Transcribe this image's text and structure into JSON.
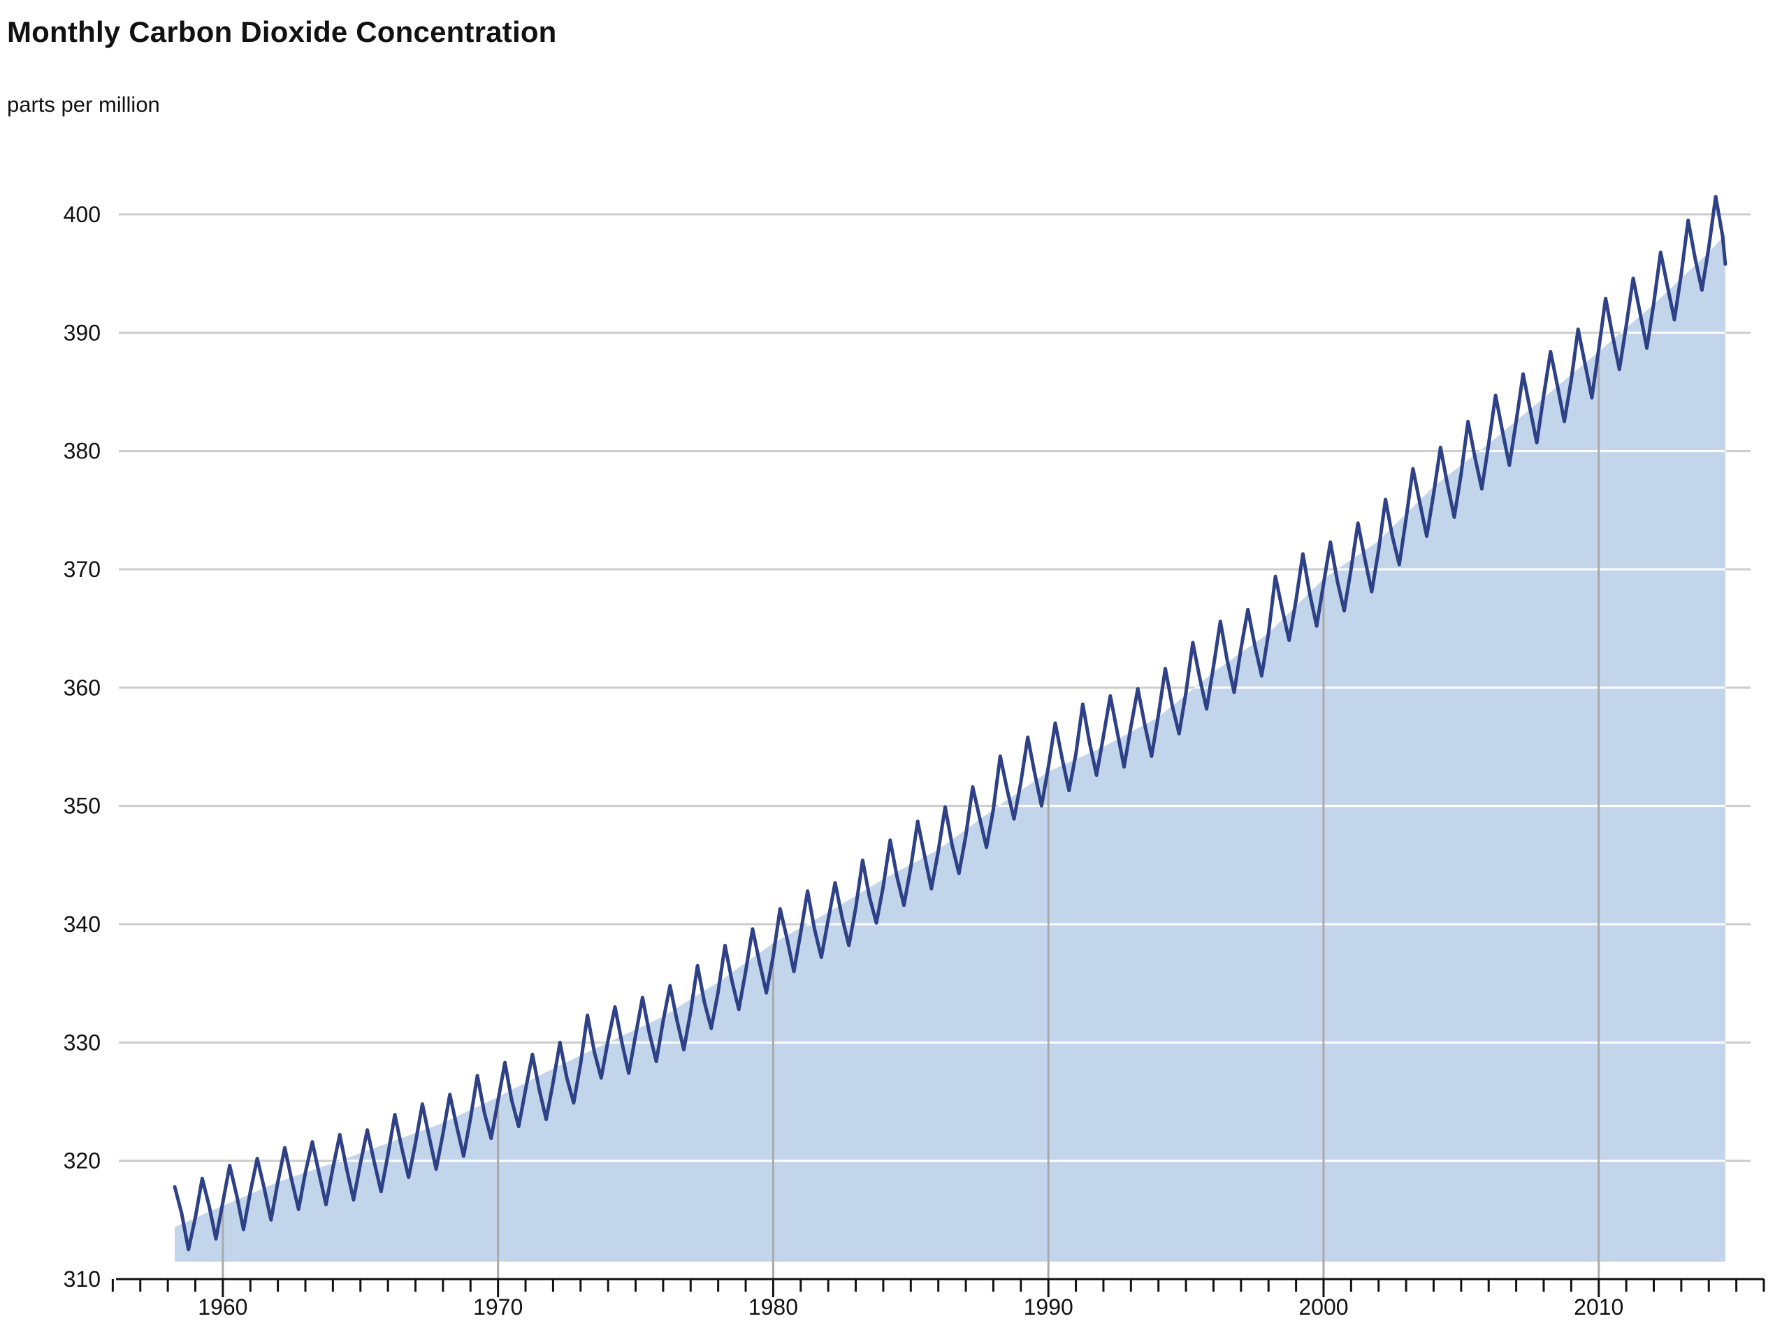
{
  "chart_data": {
    "type": "area",
    "title": "Monthly Carbon Dioxide Concentration",
    "subtitle": "parts per million",
    "xlabel": "",
    "ylabel": "",
    "xlim": [
      1955.0,
      2016.0
    ],
    "ylim": [
      310,
      401
    ],
    "xticks": [
      1960,
      1970,
      1980,
      1990,
      2000,
      2010
    ],
    "xtick_labels": [
      "1960",
      "1970",
      "1980",
      "1990",
      "2000",
      "2010"
    ],
    "yticks": [
      310,
      320,
      330,
      340,
      350,
      360,
      370,
      380,
      390,
      400
    ],
    "ytick_labels": [
      "310",
      "320",
      "330",
      "340",
      "350",
      "360",
      "370",
      "380",
      "390",
      "400"
    ],
    "grid": "horizontal",
    "legend": "none",
    "colors": {
      "line": "#2e4187",
      "area": "#c3d5ea",
      "grid": "#cccccc",
      "decade_lines": "#aaaaaa",
      "axis": "#111111"
    },
    "series": [
      {
        "role": "line",
        "x": [
          1958.25,
          1958.5,
          1958.75,
          1959.0,
          1959.25,
          1959.5,
          1959.75,
          1960.0,
          1960.25,
          1960.5,
          1960.75,
          1961.0,
          1961.25,
          1961.5,
          1961.75,
          1962.0,
          1962.25,
          1962.5,
          1962.75,
          1963.0,
          1963.25,
          1963.5,
          1963.75,
          1964.0,
          1964.25,
          1964.5,
          1964.75,
          1965.0,
          1965.25,
          1965.5,
          1965.75,
          1966.0,
          1966.25,
          1966.5,
          1966.75,
          1967.0,
          1967.25,
          1967.5,
          1967.75,
          1968.0,
          1968.25,
          1968.5,
          1968.75,
          1969.0,
          1969.25,
          1969.5,
          1969.75,
          1970.0,
          1970.25,
          1970.5,
          1970.75,
          1971.0,
          1971.25,
          1971.5,
          1971.75,
          1972.0,
          1972.25,
          1972.5,
          1972.75,
          1973.0,
          1973.25,
          1973.5,
          1973.75,
          1974.0,
          1974.25,
          1974.5,
          1974.75,
          1975.0,
          1975.25,
          1975.5,
          1975.75,
          1976.0,
          1976.25,
          1976.5,
          1976.75,
          1977.0,
          1977.25,
          1977.5,
          1977.75,
          1978.0,
          1978.25,
          1978.5,
          1978.75,
          1979.0,
          1979.25,
          1979.5,
          1979.75,
          1980.0,
          1980.25,
          1980.5,
          1980.75,
          1981.0,
          1981.25,
          1981.5,
          1981.75,
          1982.0,
          1982.25,
          1982.5,
          1982.75,
          1983.0,
          1983.25,
          1983.5,
          1983.75,
          1984.0,
          1984.25,
          1984.5,
          1984.75,
          1985.0,
          1985.25,
          1985.5,
          1985.75,
          1986.0,
          1986.25,
          1986.5,
          1986.75,
          1987.0,
          1987.25,
          1987.5,
          1987.75,
          1988.0,
          1988.25,
          1988.5,
          1988.75,
          1989.0,
          1989.25,
          1989.5,
          1989.75,
          1990.0,
          1990.25,
          1990.5,
          1990.75,
          1991.0,
          1991.25,
          1991.5,
          1991.75,
          1992.0,
          1992.25,
          1992.5,
          1992.75,
          1993.0,
          1993.25,
          1993.5,
          1993.75,
          1994.0,
          1994.25,
          1994.5,
          1994.75,
          1995.0,
          1995.25,
          1995.5,
          1995.75,
          1996.0,
          1996.25,
          1996.5,
          1996.75,
          1997.0,
          1997.25,
          1997.5,
          1997.75,
          1998.0,
          1998.25,
          1998.5,
          1998.75,
          1999.0,
          1999.25,
          1999.5,
          1999.75,
          2000.0,
          2000.25,
          2000.5,
          2000.75,
          2001.0,
          2001.25,
          2001.5,
          2001.75,
          2002.0,
          2002.25,
          2002.5,
          2002.75,
          2003.0,
          2003.25,
          2003.5,
          2003.75,
          2004.0,
          2004.25,
          2004.5,
          2004.75,
          2005.0,
          2005.25,
          2005.5,
          2005.75,
          2006.0,
          2006.25,
          2006.5,
          2006.75,
          2007.0,
          2007.25,
          2007.5,
          2007.75,
          2008.0,
          2008.25,
          2008.5,
          2008.75,
          2009.0,
          2009.25,
          2009.5,
          2009.75,
          2010.0,
          2010.25,
          2010.5,
          2010.75,
          2011.0,
          2011.25,
          2011.5,
          2011.75,
          2012.0,
          2012.25,
          2012.5,
          2012.75,
          2013.0,
          2013.25,
          2013.5,
          2013.75,
          2014.0,
          2014.25,
          2014.5,
          2014.6
        ],
        "y": [
          317.8,
          315.6,
          312.5,
          315.2,
          318.5,
          316.2,
          313.4,
          316.5,
          319.6,
          317.1,
          314.2,
          317.4,
          320.2,
          317.7,
          315.0,
          318.2,
          321.1,
          318.4,
          315.9,
          319.0,
          321.6,
          318.9,
          316.3,
          319.4,
          322.2,
          319.3,
          316.7,
          319.8,
          322.6,
          319.9,
          317.4,
          320.5,
          323.9,
          321.1,
          318.6,
          321.5,
          324.8,
          322.0,
          319.3,
          322.3,
          325.6,
          322.9,
          320.4,
          323.6,
          327.2,
          324.1,
          321.9,
          325.1,
          328.3,
          325.1,
          322.9,
          326.0,
          329.0,
          326.0,
          323.5,
          326.6,
          330.0,
          327.0,
          324.9,
          328.2,
          332.3,
          329.2,
          327.0,
          330.2,
          333.0,
          330.0,
          327.4,
          330.6,
          333.8,
          330.8,
          328.4,
          331.8,
          334.8,
          331.9,
          329.4,
          332.6,
          336.5,
          333.4,
          331.2,
          334.3,
          338.2,
          335.2,
          332.8,
          336.0,
          339.6,
          336.8,
          334.2,
          337.3,
          341.3,
          338.8,
          336.0,
          339.3,
          342.8,
          339.6,
          337.2,
          340.4,
          343.5,
          340.6,
          338.2,
          341.4,
          345.4,
          342.3,
          340.1,
          343.2,
          347.1,
          344.0,
          341.6,
          344.8,
          348.7,
          345.8,
          343.0,
          346.2,
          349.9,
          346.7,
          344.3,
          347.5,
          351.6,
          349.0,
          346.5,
          349.7,
          354.2,
          351.4,
          348.9,
          352.0,
          355.8,
          352.8,
          350.0,
          353.3,
          357.0,
          354.0,
          351.3,
          354.4,
          358.6,
          355.3,
          352.6,
          355.9,
          359.3,
          356.3,
          353.3,
          356.7,
          359.9,
          356.9,
          354.2,
          357.7,
          361.6,
          358.5,
          356.1,
          359.6,
          363.8,
          360.8,
          358.2,
          361.8,
          365.6,
          362.3,
          359.6,
          363.3,
          366.6,
          363.6,
          361.0,
          364.6,
          369.4,
          366.6,
          364.0,
          367.4,
          371.3,
          367.9,
          365.2,
          368.8,
          372.3,
          369.0,
          366.5,
          370.0,
          373.9,
          370.9,
          368.1,
          371.6,
          375.9,
          372.8,
          370.4,
          374.3,
          378.5,
          375.6,
          372.8,
          376.4,
          380.3,
          377.2,
          374.4,
          378.1,
          382.5,
          379.5,
          376.8,
          380.6,
          384.7,
          381.7,
          378.8,
          382.5,
          386.5,
          383.6,
          380.7,
          384.7,
          388.4,
          385.5,
          382.5,
          386.0,
          390.3,
          387.4,
          384.5,
          388.6,
          392.9,
          389.8,
          386.9,
          390.6,
          394.6,
          391.7,
          388.7,
          392.5,
          396.8,
          393.9,
          391.1,
          395.0,
          399.5,
          396.3,
          393.6,
          397.2,
          401.5,
          398.2,
          395.8
        ]
      },
      {
        "role": "area",
        "x": [
          1958.25,
          1960,
          1962,
          1964,
          1966,
          1968,
          1970,
          1972,
          1974,
          1976,
          1978,
          1980,
          1982,
          1984,
          1986,
          1988,
          1990,
          1992,
          1994,
          1996,
          1998,
          2000,
          2002,
          2004,
          2006,
          2008,
          2010,
          2012,
          2014,
          2014.6
        ],
        "y": [
          314.4,
          316.2,
          318.2,
          319.8,
          321.5,
          323.2,
          325.4,
          327.8,
          330.0,
          332.2,
          335.1,
          338.4,
          341.0,
          343.8,
          346.3,
          349.7,
          352.9,
          355.0,
          357.5,
          361.3,
          364.6,
          369.2,
          372.4,
          377.0,
          380.6,
          384.5,
          388.4,
          392.4,
          396.8,
          398.3
        ]
      }
    ]
  }
}
